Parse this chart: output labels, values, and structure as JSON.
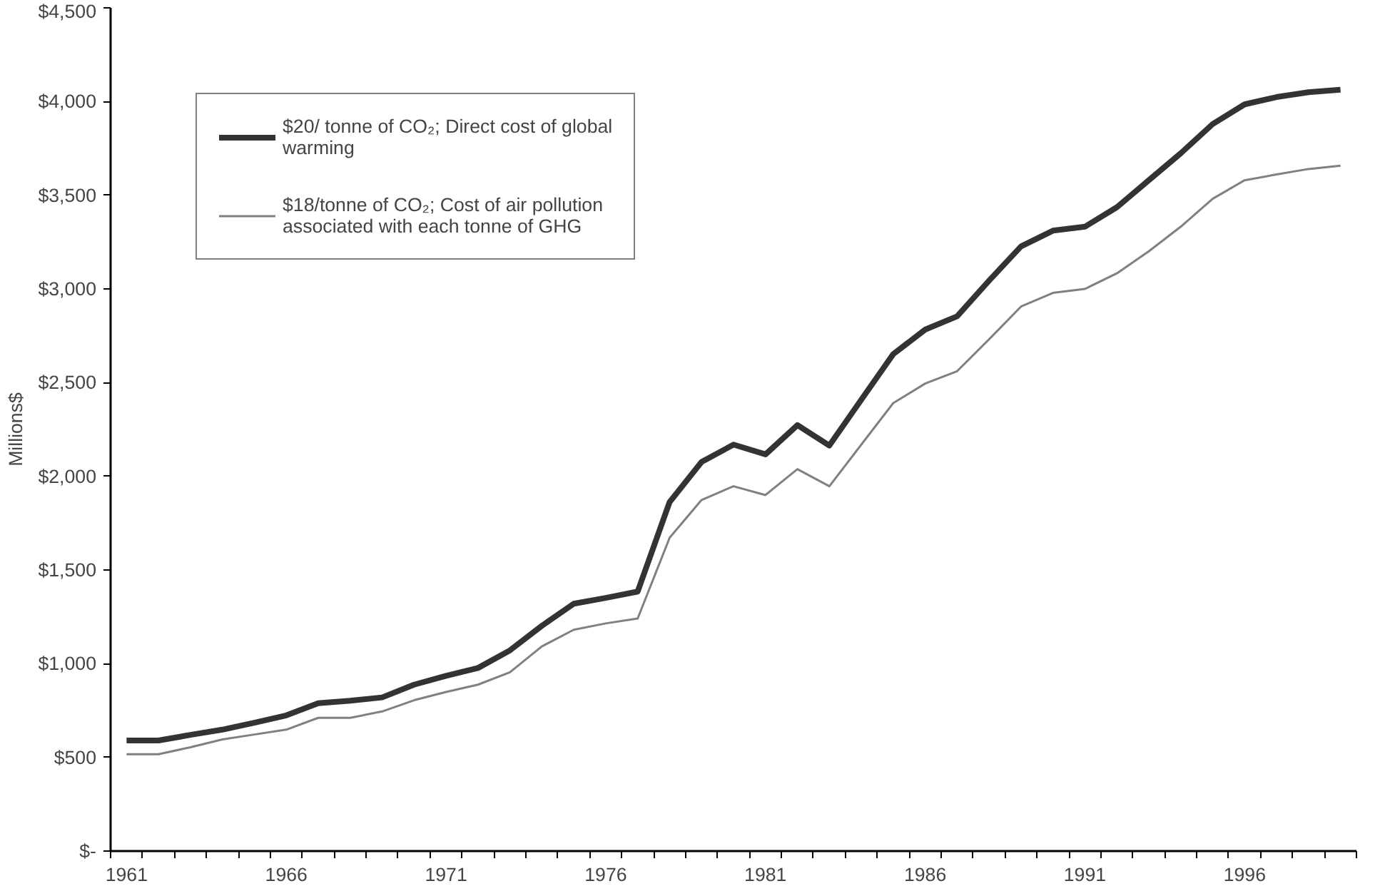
{
  "chart_data": {
    "type": "line",
    "ylabel": "Millions$",
    "categories": [
      "1961",
      null,
      null,
      null,
      null,
      "1966",
      null,
      null,
      null,
      null,
      "1971",
      null,
      null,
      null,
      null,
      "1976",
      null,
      null,
      null,
      null,
      "1981",
      null,
      null,
      null,
      null,
      "1986",
      null,
      null,
      null,
      null,
      "1991",
      null,
      null,
      null,
      null,
      "1996",
      null,
      null,
      null
    ],
    "series": [
      {
        "name": "$20/ tonne of CO₂; Direct cost of global warming",
        "color": "#333333",
        "values": [
          590,
          590,
          620,
          648,
          685,
          724,
          789,
          802,
          820,
          888,
          935,
          977,
          1071,
          1202,
          1320,
          1351,
          1385,
          1863,
          2077,
          2169,
          2117,
          2273,
          2164,
          2409,
          2652,
          2783,
          2854,
          3044,
          3227,
          3311,
          3332,
          3436,
          3580,
          3724,
          3880,
          3985,
          4024,
          4050,
          4063
        ]
      },
      {
        "name": "$18/tonne of CO₂; Cost of air pollution associated with each tonne of GHG",
        "color": "#808080",
        "values": [
          517,
          517,
          554,
          596,
          622,
          648,
          711,
          711,
          745,
          805,
          849,
          888,
          954,
          1092,
          1181,
          1215,
          1241,
          1672,
          1874,
          1947,
          1900,
          2038,
          1947,
          2169,
          2391,
          2495,
          2561,
          2731,
          2906,
          2979,
          3000,
          3083,
          3201,
          3332,
          3481,
          3580,
          3611,
          3640,
          3658
        ]
      }
    ],
    "ylim": [
      0,
      4500
    ],
    "yticks": [
      {
        "value": 0,
        "label": "$-"
      },
      {
        "value": 500,
        "label": "$500"
      },
      {
        "value": 1000,
        "label": "$1,000"
      },
      {
        "value": 1500,
        "label": "$1,500"
      },
      {
        "value": 2000,
        "label": "$2,000"
      },
      {
        "value": 2500,
        "label": "$2,500"
      },
      {
        "value": 3000,
        "label": "$3,000"
      },
      {
        "value": 3500,
        "label": "$3,500"
      },
      {
        "value": 4000,
        "label": "$4,000"
      },
      {
        "value": 4500,
        "label": "$4,500"
      }
    ],
    "grid": false,
    "legend": "top left",
    "marker": "none",
    "line_style": "solid"
  }
}
